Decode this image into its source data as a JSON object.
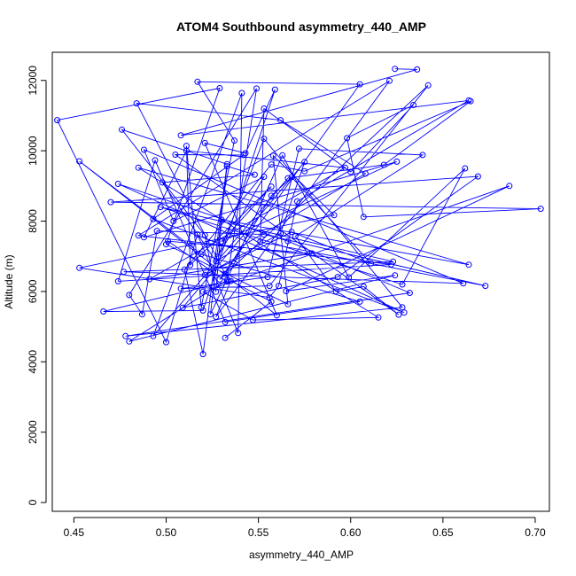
{
  "chart_data": {
    "type": "line",
    "title": "ATOM4 Southbound asymmetry_440_AMP",
    "xlabel": "asymmetry_440_AMP",
    "ylabel": "Altitude (m)",
    "xlim": [
      0.4383,
      0.7077
    ],
    "ylim": [
      -250,
      12800
    ],
    "xticks": [
      "0.45",
      "0.50",
      "0.55",
      "0.60",
      "0.65",
      "0.70"
    ],
    "yticks": [
      "0",
      "2000",
      "4000",
      "6000",
      "8000",
      "10000",
      "12000"
    ],
    "grid": false,
    "color": "#0000ff",
    "marker": "open-circle",
    "series": [
      {
        "x": [
          0.624,
          0.636,
          0.508,
          0.664,
          0.571,
          0.561,
          0.556,
          0.453,
          0.591,
          0.558,
          0.566,
          0.5,
          0.529,
          0.441,
          0.5,
          0.517,
          0.539,
          0.541,
          0.493,
          0.566,
          0.618,
          0.665,
          0.575,
          0.557,
          0.51,
          0.52,
          0.533,
          0.476,
          0.521,
          0.527,
          0.53,
          0.664,
          0.485,
          0.615,
          0.547,
          0.52,
          0.686,
          0.565,
          0.624,
          0.48,
          0.533,
          0.549,
          0.48,
          0.487,
          0.495,
          0.553,
          0.673,
          0.551,
          0.553,
          0.6,
          0.634,
          0.598,
          0.607,
          0.703,
          0.47,
          0.669,
          0.593,
          0.509,
          0.575,
          0.562,
          0.521,
          0.568,
          0.611,
          0.568,
          0.557,
          0.532,
          0.484,
          0.562,
          0.608,
          0.527,
          0.498,
          0.548,
          0.533,
          0.524,
          0.537,
          0.563,
          0.599,
          0.662,
          0.628,
          0.497,
          0.623,
          0.477,
          0.661,
          0.488,
          0.504,
          0.553,
          0.528,
          0.553,
          0.628,
          0.478,
          0.632,
          0.566,
          0.474,
          0.629,
          0.493,
          0.542,
          0.505,
          0.626,
          0.607,
          0.592,
          0.57,
          0.639,
          0.572,
          0.555,
          0.508,
          0.556,
          0.642,
          0.529,
          0.605,
          0.517,
          0.537,
          0.519,
          0.511,
          0.513,
          0.557,
          0.53,
          0.625,
          0.488,
          0.511,
          0.597,
          0.491,
          0.579,
          0.501,
          0.533,
          0.466,
          0.52,
          0.559,
          0.543,
          0.521,
          0.56,
          0.453,
          0.519,
          0.605,
          0.532,
          0.494,
          0.474,
          0.622,
          0.485,
          0.621,
          0.527,
          0.535,
          0.557,
          0.532
        ],
        "y": [
          12330,
          12310,
          10440,
          11430,
          8560,
          6160,
          5830,
          6670,
          8170,
          9860,
          5640,
          7340,
          11780,
          10870,
          4560,
          7620,
          4820,
          11640,
          4730,
          9220,
          9600,
          11410,
          9420,
          9610,
          6620,
          4220,
          9620,
          10600,
          7600,
          5990,
          8040,
          6760,
          9520,
          5260,
          5190,
          5990,
          9000,
          6010,
          6460,
          4580,
          6320,
          11770,
          5900,
          5350,
          7720,
          7620,
          6160,
          7410,
          11200,
          9400,
          11300,
          10360,
          8120,
          8350,
          8540,
          9270,
          6410,
          5540,
          9680,
          7650,
          6470,
          7690,
          6800,
          9250,
          8720,
          6500,
          11350,
          10870,
          9350,
          6860,
          9100,
          9320,
          9560,
          5350,
          6800,
          9870,
          6400,
          9500,
          6200,
          8400,
          6850,
          6560,
          6230,
          10030,
          8000,
          9260,
          6990,
          10340,
          5550,
          4730,
          5960,
          7430,
          9060,
          5400,
          8060,
          9880,
          9890,
          5340,
          6140,
          6000,
          7570,
          9880,
          10060,
          6410,
          6080,
          6160,
          11860,
          6340,
          11890,
          11960,
          10290,
          5550,
          10140,
          6750,
          8980,
          7420,
          9690,
          7540,
          10000,
          9520,
          6350,
          7080,
          7430,
          6280,
          5430,
          5460,
          11740,
          9930,
          10220,
          5320,
          9700,
          7060,
          5710,
          5130,
          9730,
          6290,
          6770,
          7590,
          11990,
          5280,
          6300,
          5710,
          4680
        ]
      }
    ]
  }
}
